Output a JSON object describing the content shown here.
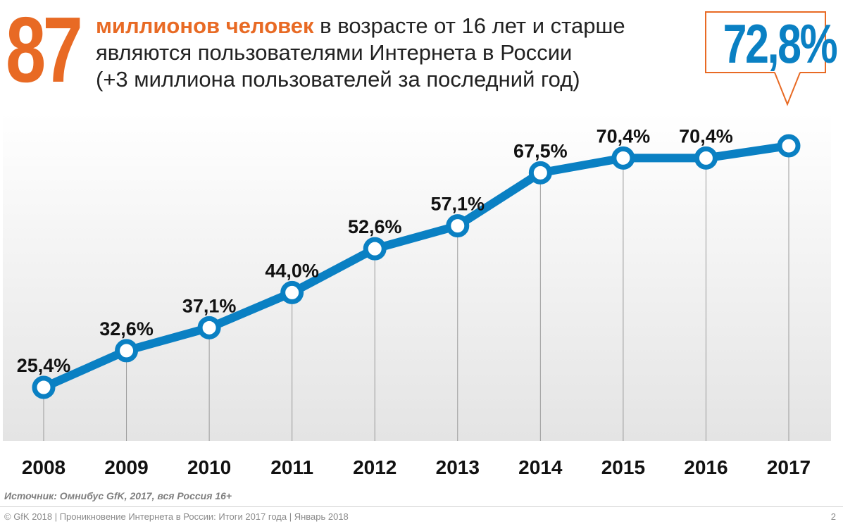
{
  "header": {
    "big_number": "87",
    "headline_accent": "миллионов человек",
    "headline_rest_1": " в возрасте от 16 лет и старше",
    "headline_line_2": "являются пользователями Интернета в России",
    "headline_line_3": "(+3 миллиона пользователей за последний год)",
    "callout_value": "72,8%"
  },
  "colors": {
    "accent_orange": "#e86a24",
    "accent_blue": "#0a80c3",
    "line_blue": "#0a80c3",
    "text_dark": "#111111"
  },
  "chart_data": {
    "type": "line",
    "title": "",
    "xlabel": "",
    "ylabel": "",
    "ylim": [
      0,
      100
    ],
    "grid": false,
    "categories": [
      "2008",
      "2009",
      "2010",
      "2011",
      "2012",
      "2013",
      "2014",
      "2015",
      "2016",
      "2017"
    ],
    "values": [
      25.4,
      32.6,
      37.1,
      44.0,
      52.6,
      57.1,
      67.5,
      70.4,
      70.4,
      72.8
    ],
    "data_labels": [
      "25,4%",
      "32,6%",
      "37,1%",
      "44,0%",
      "52,6%",
      "57,1%",
      "67,5%",
      "70,4%",
      "70,4%",
      ""
    ]
  },
  "source": "Источник: Омнибус GfK, 2017, вся Россия 16+",
  "footer": {
    "text": "© GfK 2018 | Проникновение Интернета в России: Итоги 2017 года | Январь 2018",
    "page_number": "2"
  }
}
